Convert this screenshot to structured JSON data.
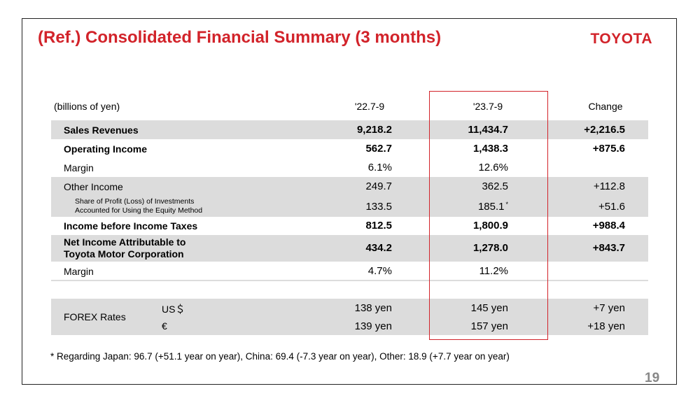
{
  "title": "(Ref.) Consolidated Financial Summary (3 months)",
  "logo": "TOYOTA",
  "page_number": "19",
  "unit": "(billions of yen)",
  "columns": [
    "'22.7-9",
    "'23.7-9",
    "Change"
  ],
  "rows": [
    {
      "label": "Sales Revenues",
      "v1": "9,218.2",
      "v2": "11,434.7",
      "v3": "+2,216.5"
    },
    {
      "label": "Operating Income",
      "v1": "562.7",
      "v2": "1,438.3",
      "v3": "+875.6"
    },
    {
      "label": "Margin",
      "v1": "6.1%",
      "v2": "12.6%",
      "v3": ""
    },
    {
      "label": "Other Income",
      "v1": "249.7",
      "v2": "362.5",
      "v3": "+112.8"
    },
    {
      "label_line1": "Share of Profit (Loss) of Investments",
      "label_line2": "Accounted for Using the Equity Method",
      "v1": "133.5",
      "v2": "185.1",
      "v2_mark": "*",
      "v3": "+51.6"
    },
    {
      "label": "Income before Income Taxes",
      "v1": "812.5",
      "v2": "1,800.9",
      "v3": "+988.4"
    },
    {
      "label_line1": "Net Income Attributable to",
      "label_line2": "Toyota Motor Corporation",
      "v1": "434.2",
      "v2": "1,278.0",
      "v3": "+843.7"
    },
    {
      "label": "Margin",
      "v1": "4.7%",
      "v2": "11.2%",
      "v3": ""
    }
  ],
  "forex": {
    "label": "FOREX Rates",
    "rows": [
      {
        "currency": "US＄",
        "v1": "138 yen",
        "v2": "145 yen",
        "v3": "+7 yen"
      },
      {
        "currency": "€",
        "v1": "139 yen",
        "v2": "157 yen",
        "v3": "+18 yen"
      }
    ]
  },
  "footnote": "* Regarding Japan: 96.7 (+51.1 year on year), China: 69.4 (-7.3 year on year), Other: 18.9 (+7.7 year on year)",
  "colors": {
    "accent": "#d2232a",
    "band": "#dcdcdc"
  }
}
